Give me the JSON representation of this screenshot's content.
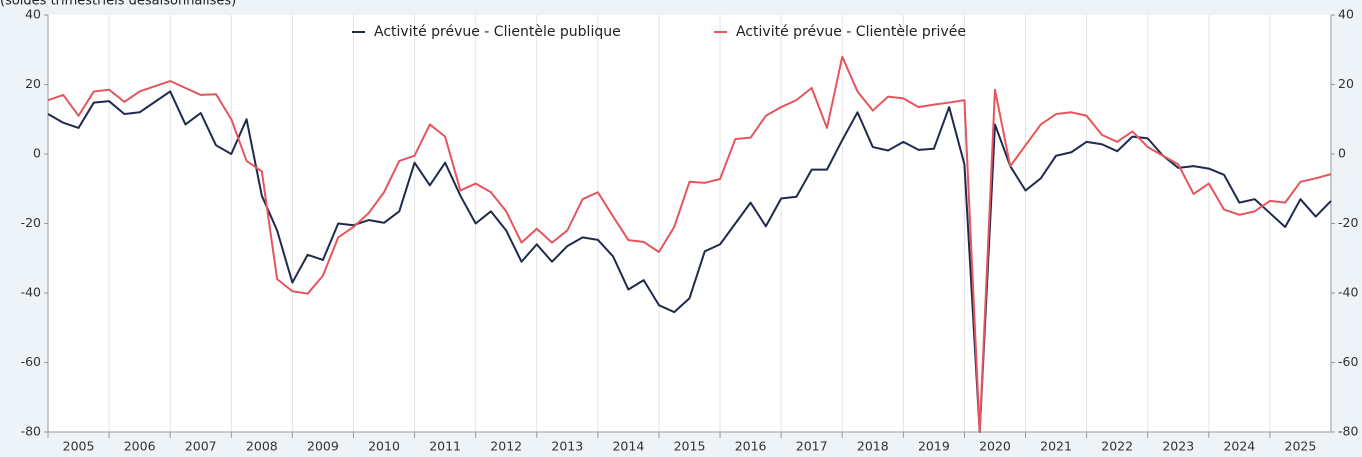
{
  "chart_data": {
    "type": "line",
    "subtitle": "(soldes trimestriels désaisonnalisés)",
    "x": [
      2005,
      2005.25,
      2005.5,
      2005.75,
      2006,
      2006.25,
      2006.5,
      2006.75,
      2007,
      2007.25,
      2007.5,
      2007.75,
      2008,
      2008.25,
      2008.5,
      2008.75,
      2009,
      2009.25,
      2009.5,
      2009.75,
      2010,
      2010.25,
      2010.5,
      2010.75,
      2011,
      2011.25,
      2011.5,
      2011.75,
      2012,
      2012.25,
      2012.5,
      2012.75,
      2013,
      2013.25,
      2013.5,
      2013.75,
      2014,
      2014.25,
      2014.5,
      2014.75,
      2015,
      2015.25,
      2015.5,
      2015.75,
      2016,
      2016.25,
      2016.5,
      2016.75,
      2017,
      2017.25,
      2017.5,
      2017.75,
      2018,
      2018.25,
      2018.5,
      2018.75,
      2019,
      2019.25,
      2019.5,
      2019.75,
      2020,
      2020.25,
      2020.5,
      2020.75,
      2021,
      2021.25,
      2021.5,
      2021.75,
      2022,
      2022.25,
      2022.5,
      2022.75,
      2023,
      2023.25,
      2023.5,
      2023.75,
      2024,
      2024.25,
      2024.5,
      2024.75,
      2025,
      2025.25,
      2025.5,
      2025.75,
      2026
    ],
    "series": [
      {
        "name": "Activité prévue - Clientèle publique",
        "color": "#1f2a4d",
        "values": [
          11.5,
          9,
          7.5,
          14.8,
          15.2,
          11.5,
          12,
          15,
          18,
          8.5,
          11.8,
          2.5,
          0,
          10,
          -12,
          -22,
          -37,
          -29,
          -30.5,
          -20,
          -20.5,
          -19,
          -19.8,
          -16.5,
          -2.5,
          -9,
          -2.5,
          -12,
          -20,
          -16.5,
          -22,
          -31,
          -26,
          -31,
          -26.5,
          -24,
          -24.7,
          -29.5,
          -39,
          -36.3,
          -43.5,
          -45.5,
          -41.5,
          -28,
          -26,
          -20,
          -14,
          -20.8,
          -12.8,
          -12.3,
          -4.5,
          -4.5,
          4,
          12,
          2,
          1,
          3.5,
          1.2,
          1.5,
          13.5,
          -3,
          -80,
          8.5,
          -3.5,
          -10.5,
          -7,
          -0.5,
          0.5,
          3.5,
          2.8,
          0.8,
          5,
          4.5,
          -0.5,
          -4,
          -3.5,
          -4.2,
          -6,
          -14,
          -13,
          -17,
          -21,
          -13,
          -18,
          -13.5
        ]
      },
      {
        "name": "Activité prévue - Clientèle privée",
        "color": "#e5555d",
        "values": [
          15.5,
          17,
          11,
          18,
          18.5,
          15,
          18,
          19.5,
          21,
          19,
          17,
          17.2,
          10,
          -2,
          -5,
          -36,
          -39.5,
          -40.2,
          -35,
          -24,
          -21,
          -17,
          -11,
          -2,
          -0.5,
          8.5,
          5,
          -10.5,
          -8.5,
          -11,
          -16.5,
          -25.5,
          -21.5,
          -25.5,
          -22,
          -13,
          -11,
          -18,
          -24.8,
          -25.3,
          -28.2,
          -21,
          -8,
          -8.3,
          -7.2,
          4.3,
          4.7,
          11,
          13.5,
          15.5,
          19,
          7.5,
          28,
          18,
          12.5,
          16.5,
          16,
          13.5,
          14.2,
          14.8,
          15.5,
          -80,
          18.5,
          -3.5,
          2.5,
          8.5,
          11.5,
          12,
          11,
          5.5,
          3.5,
          6.5,
          2,
          -0.5,
          -3,
          -11.5,
          -8.5,
          -16,
          -17.5,
          -16.5,
          -13.5,
          -14,
          -8,
          -7,
          -5.8
        ]
      }
    ],
    "xlim": [
      2005,
      2026
    ],
    "xticks": [
      2005,
      2006,
      2007,
      2008,
      2009,
      2010,
      2011,
      2012,
      2013,
      2014,
      2015,
      2016,
      2017,
      2018,
      2019,
      2020,
      2021,
      2022,
      2023,
      2024,
      2025
    ],
    "ylim": [
      -80,
      40
    ],
    "yticks": [
      40,
      20,
      0,
      -20,
      -40,
      -60,
      -80
    ],
    "y2lim": [
      -80,
      40
    ],
    "y2ticks": [
      40,
      20,
      0,
      -20,
      -40,
      -60,
      -80
    ],
    "grid": true,
    "legend": "top"
  }
}
